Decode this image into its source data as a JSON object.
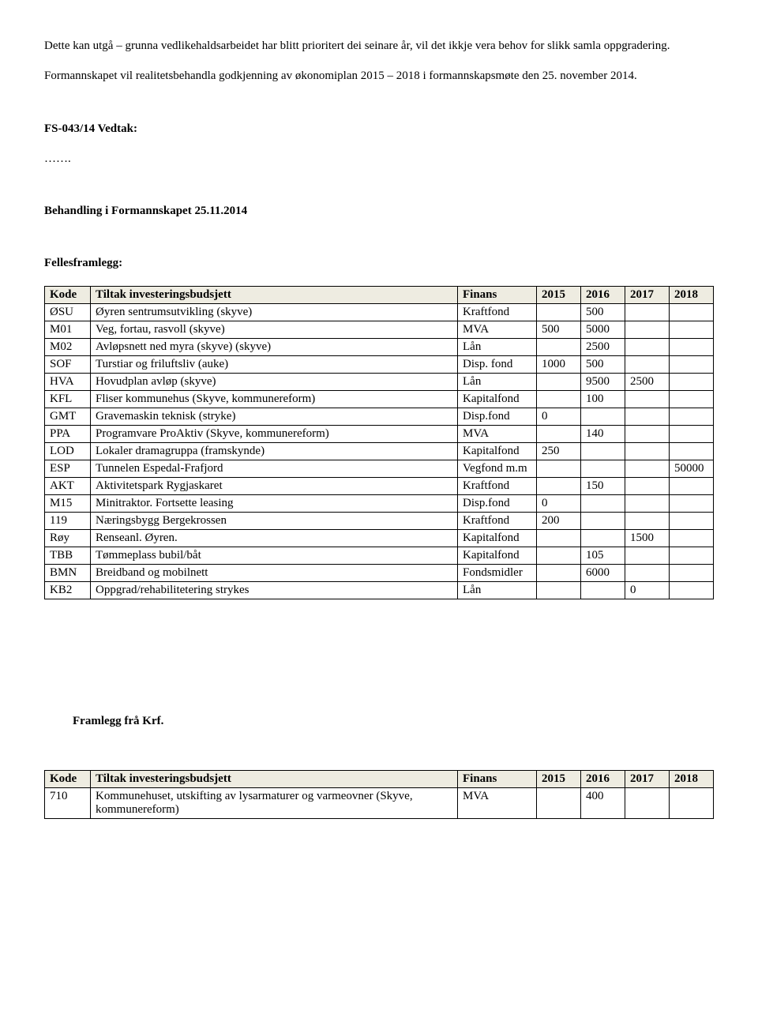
{
  "intro": {
    "p1": "Dette kan utgå – grunna vedlikehaldsarbeidet har blitt prioritert dei seinare år, vil det ikkje vera behov for slikk samla oppgradering.",
    "p2": "Formannskapet vil realitetsbehandla godkjenning av økonomiplan 2015 – 2018 i formannskapsmøte den 25. november 2014."
  },
  "vedtak_heading": "FS-043/14 Vedtak:",
  "dots": "…….",
  "behandling_heading": "Behandling i  Formannskapet   25.11.2014",
  "fellesframlegg_heading": "Fellesframlegg:",
  "table1": {
    "header_bg": "#eeece1",
    "border_color": "#000000",
    "columns": [
      "Kode",
      "Tiltak investeringsbudsjett",
      "Finans",
      "2015",
      "2016",
      "2017",
      "2018"
    ],
    "rows": [
      [
        "ØSU",
        "Øyren sentrumsutvikling (skyve)",
        "Kraftfond",
        "",
        "500",
        "",
        ""
      ],
      [
        "M01",
        "Veg, fortau, rasvoll (skyve)",
        "MVA",
        "500",
        "5000",
        "",
        ""
      ],
      [
        "M02",
        "Avløpsnett ned myra (skyve) (skyve)",
        "Lån",
        "",
        "2500",
        "",
        ""
      ],
      [
        "SOF",
        "Turstiar og friluftsliv (auke)",
        "Disp. fond",
        "1000",
        "500",
        "",
        ""
      ],
      [
        "HVA",
        "Hovudplan avløp (skyve)",
        "Lån",
        "",
        "9500",
        "2500",
        ""
      ],
      [
        "KFL",
        "Fliser kommunehus (Skyve, kommunereform)",
        "Kapitalfond",
        "",
        "100",
        "",
        ""
      ],
      [
        "GMT",
        "Gravemaskin teknisk (stryke)",
        "Disp.fond",
        "0",
        "",
        "",
        ""
      ],
      [
        "PPA",
        "Programvare ProAktiv (Skyve, kommunereform)",
        "MVA",
        "",
        "140",
        "",
        ""
      ],
      [
        "LOD",
        "Lokaler dramagruppa (framskynde)",
        "Kapitalfond",
        "250",
        "",
        "",
        ""
      ],
      [
        "ESP",
        "Tunnelen Espedal-Frafjord",
        "Vegfond m.m",
        "",
        "",
        "",
        "50000"
      ],
      [
        "AKT",
        "Aktivitetspark Rygjaskaret",
        "Kraftfond",
        "",
        "150",
        "",
        ""
      ],
      [
        "M15",
        "Minitraktor. Fortsette leasing",
        "Disp.fond",
        "0",
        "",
        "",
        ""
      ],
      [
        "119",
        "Næringsbygg Bergekrossen",
        "Kraftfond",
        "200",
        "",
        "",
        ""
      ],
      [
        " Røy",
        " Renseanl. Øyren.",
        "Kapitalfond",
        "",
        "",
        "1500",
        ""
      ],
      [
        "TBB",
        "Tømmeplass bubil/båt",
        "Kapitalfond",
        "",
        "105",
        "",
        ""
      ],
      [
        "BMN",
        "Breidband og mobilnett",
        "Fondsmidler",
        "",
        "6000",
        "",
        ""
      ],
      [
        "KB2",
        "Oppgrad/rehabilitetering strykes",
        "Lån",
        "",
        "",
        "0",
        ""
      ]
    ]
  },
  "krf_heading": "Framlegg frå Krf.",
  "table2": {
    "header_bg": "#eeece1",
    "border_color": "#000000",
    "columns": [
      "Kode",
      "Tiltak investeringsbudsjett",
      "Finans",
      "2015",
      "2016",
      "2017",
      "2018"
    ],
    "rows": [
      [
        "710",
        "Kommunehuset, utskifting av lysarmaturer og varmeovner (Skyve, kommunereform)",
        "MVA",
        "",
        "400",
        "",
        ""
      ]
    ]
  }
}
